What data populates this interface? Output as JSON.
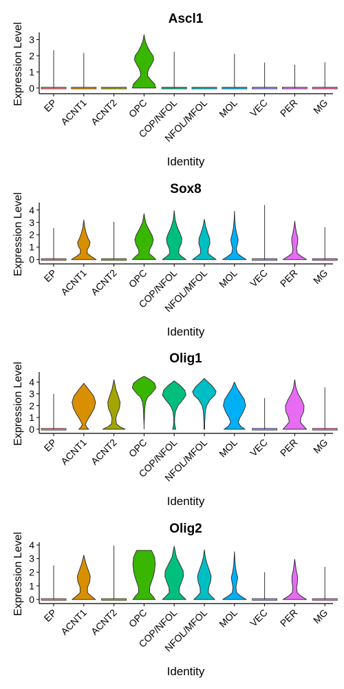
{
  "colors": {
    "EP": "#F8766D",
    "ACNT1": "#D89000",
    "ACNT2": "#A3A500",
    "OPC": "#39B600",
    "COP/NFOL": "#00BF7D",
    "NFOL/MFOL": "#00BFC4",
    "MOL": "#00B0F6",
    "VEC": "#9590FF",
    "PER": "#E76BF3",
    "MG": "#FF62BC"
  },
  "chart_data": [
    {
      "type": "violin",
      "title": "Ascl1",
      "xlabel": "Identity",
      "ylabel": "Expression Level",
      "ylim": [
        -0.35,
        3.45
      ],
      "yticks": [
        0,
        1,
        2,
        3
      ],
      "categories": [
        "EP",
        "ACNT1",
        "ACNT2",
        "OPC",
        "COP/NFOL",
        "NFOL/MFOL",
        "MOL",
        "VEC",
        "PER",
        "MG"
      ],
      "max_values": [
        2.35,
        2.18,
        0.02,
        3.3,
        2.25,
        0.02,
        2.12,
        1.58,
        1.45,
        1.6
      ],
      "violins": {
        "OPC": [
          [
            0,
            0.95
          ],
          [
            0.25,
            0.85
          ],
          [
            0.5,
            0.55
          ],
          [
            0.75,
            0.28
          ],
          [
            1.0,
            0.3
          ],
          [
            1.25,
            0.42
          ],
          [
            1.5,
            0.62
          ],
          [
            1.75,
            0.78
          ],
          [
            2.0,
            0.72
          ],
          [
            2.3,
            0.45
          ],
          [
            2.6,
            0.25
          ],
          [
            2.9,
            0.1
          ],
          [
            3.3,
            0.0
          ]
        ]
      }
    },
    {
      "type": "violin",
      "title": "Sox8",
      "xlabel": "Identity",
      "ylabel": "Expression Level",
      "ylim": [
        -0.35,
        4.6
      ],
      "yticks": [
        0,
        1,
        2,
        3,
        4
      ],
      "categories": [
        "EP",
        "ACNT1",
        "ACNT2",
        "OPC",
        "COP/NFOL",
        "NFOL/MFOL",
        "MOL",
        "VEC",
        "PER",
        "MG"
      ],
      "max_values": [
        2.55,
        3.2,
        3.05,
        3.7,
        3.95,
        3.25,
        3.9,
        4.4,
        3.1,
        2.6
      ],
      "violins": {
        "ACNT1": [
          [
            0,
            1.0
          ],
          [
            0.25,
            0.6
          ],
          [
            0.5,
            0.28
          ],
          [
            0.8,
            0.28
          ],
          [
            1.1,
            0.45
          ],
          [
            1.4,
            0.5
          ],
          [
            1.7,
            0.35
          ],
          [
            2.1,
            0.2
          ],
          [
            2.6,
            0.08
          ],
          [
            3.2,
            0.0
          ]
        ],
        "OPC": [
          [
            0,
            0.95
          ],
          [
            0.25,
            0.7
          ],
          [
            0.5,
            0.4
          ],
          [
            0.8,
            0.45
          ],
          [
            1.2,
            0.65
          ],
          [
            1.6,
            0.75
          ],
          [
            2.0,
            0.62
          ],
          [
            2.5,
            0.35
          ],
          [
            3.0,
            0.12
          ],
          [
            3.7,
            0.0
          ]
        ],
        "COP/NFOL": [
          [
            0,
            0.95
          ],
          [
            0.25,
            0.6
          ],
          [
            0.5,
            0.35
          ],
          [
            0.9,
            0.4
          ],
          [
            1.3,
            0.58
          ],
          [
            1.7,
            0.62
          ],
          [
            2.1,
            0.48
          ],
          [
            2.6,
            0.25
          ],
          [
            3.2,
            0.08
          ],
          [
            3.95,
            0.0
          ]
        ],
        "NFOL/MFOL": [
          [
            0,
            0.95
          ],
          [
            0.25,
            0.6
          ],
          [
            0.5,
            0.3
          ],
          [
            0.9,
            0.32
          ],
          [
            1.3,
            0.45
          ],
          [
            1.7,
            0.42
          ],
          [
            2.2,
            0.25
          ],
          [
            2.7,
            0.1
          ],
          [
            3.25,
            0.0
          ]
        ],
        "MOL": [
          [
            0,
            0.95
          ],
          [
            0.25,
            0.55
          ],
          [
            0.5,
            0.22
          ],
          [
            0.9,
            0.15
          ],
          [
            1.3,
            0.25
          ],
          [
            1.6,
            0.3
          ],
          [
            2.0,
            0.2
          ],
          [
            2.6,
            0.08
          ],
          [
            3.2,
            0.03
          ],
          [
            3.9,
            0.0
          ]
        ],
        "PER": [
          [
            0,
            0.95
          ],
          [
            0.25,
            0.55
          ],
          [
            0.5,
            0.2
          ],
          [
            0.9,
            0.15
          ],
          [
            1.3,
            0.22
          ],
          [
            1.7,
            0.25
          ],
          [
            2.1,
            0.15
          ],
          [
            2.6,
            0.06
          ],
          [
            3.1,
            0.0
          ]
        ]
      }
    },
    {
      "type": "violin",
      "title": "Olig1",
      "xlabel": "Identity",
      "ylabel": "Expression Level",
      "ylim": [
        -0.35,
        4.85
      ],
      "yticks": [
        0,
        1,
        2,
        3,
        4
      ],
      "categories": [
        "EP",
        "ACNT1",
        "ACNT2",
        "OPC",
        "COP/NFOL",
        "NFOL/MFOL",
        "MOL",
        "VEC",
        "PER",
        "MG"
      ],
      "max_values": [
        3.0,
        3.9,
        4.2,
        4.5,
        4.1,
        4.3,
        4.0,
        2.65,
        4.2,
        3.55
      ],
      "violins": {
        "ACNT1": [
          [
            0,
            0.4
          ],
          [
            0.2,
            0.22
          ],
          [
            0.4,
            0.12
          ],
          [
            0.8,
            0.3
          ],
          [
            1.3,
            0.6
          ],
          [
            1.8,
            0.85
          ],
          [
            2.3,
            0.95
          ],
          [
            2.8,
            0.8
          ],
          [
            3.3,
            0.45
          ],
          [
            3.9,
            0.0
          ]
        ],
        "ACNT2": [
          [
            0,
            0.9
          ],
          [
            0.2,
            0.5
          ],
          [
            0.45,
            0.2
          ],
          [
            0.9,
            0.15
          ],
          [
            1.3,
            0.25
          ],
          [
            1.8,
            0.45
          ],
          [
            2.3,
            0.5
          ],
          [
            2.8,
            0.35
          ],
          [
            3.4,
            0.15
          ],
          [
            4.2,
            0.0
          ]
        ],
        "OPC": [
          [
            0.3,
            0.0
          ],
          [
            0.8,
            0.02
          ],
          [
            1.3,
            0.04
          ],
          [
            1.8,
            0.06
          ],
          [
            2.3,
            0.12
          ],
          [
            2.7,
            0.28
          ],
          [
            3.1,
            0.65
          ],
          [
            3.5,
            0.95
          ],
          [
            3.9,
            0.85
          ],
          [
            4.2,
            0.5
          ],
          [
            4.5,
            0.0
          ]
        ],
        "COP/NFOL": [
          [
            0,
            0.12
          ],
          [
            0.3,
            0.06
          ],
          [
            0.6,
            0.03
          ],
          [
            1.0,
            0.04
          ],
          [
            1.5,
            0.1
          ],
          [
            2.0,
            0.3
          ],
          [
            2.5,
            0.7
          ],
          [
            2.9,
            0.95
          ],
          [
            3.3,
            0.85
          ],
          [
            3.7,
            0.5
          ],
          [
            4.1,
            0.0
          ]
        ],
        "NFOL/MFOL": [
          [
            0,
            0.03
          ],
          [
            0.5,
            0.03
          ],
          [
            1.0,
            0.05
          ],
          [
            1.5,
            0.08
          ],
          [
            2.0,
            0.18
          ],
          [
            2.5,
            0.45
          ],
          [
            2.9,
            0.85
          ],
          [
            3.2,
            0.95
          ],
          [
            3.6,
            0.7
          ],
          [
            4.0,
            0.3
          ],
          [
            4.3,
            0.0
          ]
        ],
        "MOL": [
          [
            0,
            0.85
          ],
          [
            0.25,
            0.5
          ],
          [
            0.6,
            0.3
          ],
          [
            1.0,
            0.45
          ],
          [
            1.5,
            0.72
          ],
          [
            2.0,
            0.9
          ],
          [
            2.5,
            0.8
          ],
          [
            3.0,
            0.5
          ],
          [
            3.5,
            0.2
          ],
          [
            4.0,
            0.0
          ]
        ],
        "PER": [
          [
            0,
            0.95
          ],
          [
            0.3,
            0.7
          ],
          [
            0.6,
            0.45
          ],
          [
            1.0,
            0.5
          ],
          [
            1.5,
            0.72
          ],
          [
            2.0,
            0.75
          ],
          [
            2.5,
            0.55
          ],
          [
            3.0,
            0.28
          ],
          [
            3.5,
            0.1
          ],
          [
            4.2,
            0.0
          ]
        ]
      }
    },
    {
      "type": "violin",
      "title": "Olig2",
      "xlabel": "Identity",
      "ylabel": "Expression Level",
      "ylim": [
        -0.3,
        4.2
      ],
      "yticks": [
        0,
        1,
        2,
        3,
        4
      ],
      "categories": [
        "EP",
        "ACNT1",
        "ACNT2",
        "OPC",
        "COP/NFOL",
        "NFOL/MFOL",
        "MOL",
        "VEC",
        "PER",
        "MG"
      ],
      "max_values": [
        2.5,
        3.25,
        3.95,
        3.6,
        3.9,
        3.65,
        3.5,
        2.0,
        2.95,
        2.4
      ],
      "violins": {
        "ACNT1": [
          [
            0,
            0.95
          ],
          [
            0.25,
            0.6
          ],
          [
            0.5,
            0.3
          ],
          [
            0.9,
            0.3
          ],
          [
            1.3,
            0.48
          ],
          [
            1.7,
            0.52
          ],
          [
            2.1,
            0.38
          ],
          [
            2.6,
            0.18
          ],
          [
            3.25,
            0.0
          ]
        ],
        "OPC": [
          [
            0,
            0.9
          ],
          [
            0.25,
            0.7
          ],
          [
            0.5,
            0.45
          ],
          [
            0.9,
            0.45
          ],
          [
            1.3,
            0.6
          ],
          [
            1.7,
            0.75
          ],
          [
            2.1,
            0.85
          ],
          [
            2.6,
            0.9
          ],
          [
            3.1,
            0.85
          ],
          [
            3.6,
            0.6
          ]
        ],
        "COP/NFOL": [
          [
            0,
            0.95
          ],
          [
            0.25,
            0.65
          ],
          [
            0.5,
            0.4
          ],
          [
            0.9,
            0.42
          ],
          [
            1.3,
            0.6
          ],
          [
            1.7,
            0.75
          ],
          [
            2.1,
            0.72
          ],
          [
            2.6,
            0.45
          ],
          [
            3.1,
            0.18
          ],
          [
            3.9,
            0.0
          ]
        ],
        "NFOL/MFOL": [
          [
            0,
            0.85
          ],
          [
            0.25,
            0.55
          ],
          [
            0.5,
            0.32
          ],
          [
            0.9,
            0.35
          ],
          [
            1.3,
            0.5
          ],
          [
            1.7,
            0.55
          ],
          [
            2.1,
            0.42
          ],
          [
            2.6,
            0.22
          ],
          [
            3.1,
            0.08
          ],
          [
            3.65,
            0.0
          ]
        ],
        "MOL": [
          [
            0,
            0.95
          ],
          [
            0.25,
            0.5
          ],
          [
            0.5,
            0.18
          ],
          [
            0.9,
            0.12
          ],
          [
            1.3,
            0.2
          ],
          [
            1.6,
            0.26
          ],
          [
            2.0,
            0.15
          ],
          [
            2.5,
            0.06
          ],
          [
            3.5,
            0.0
          ]
        ],
        "PER": [
          [
            0,
            0.95
          ],
          [
            0.25,
            0.5
          ],
          [
            0.5,
            0.2
          ],
          [
            0.9,
            0.15
          ],
          [
            1.3,
            0.22
          ],
          [
            1.7,
            0.22
          ],
          [
            2.1,
            0.12
          ],
          [
            2.95,
            0.0
          ]
        ]
      }
    }
  ]
}
